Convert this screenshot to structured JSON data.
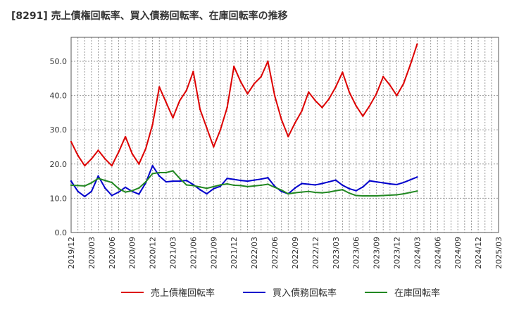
{
  "chart_data": {
    "type": "line",
    "title": "[8291]  売上債権回転率、買入債務回転率、在庫回転率の推移",
    "xlabel": "",
    "ylabel": "",
    "ylim": [
      0,
      57
    ],
    "yticks": [
      0.0,
      10.0,
      20.0,
      30.0,
      40.0,
      50.0
    ],
    "ytick_labels": [
      "0.0",
      "10.0",
      "20.0",
      "30.0",
      "40.0",
      "50.0"
    ],
    "xtick_labels": [
      "2019/12",
      "2020/03",
      "2020/06",
      "2020/09",
      "2020/12",
      "2021/03",
      "2021/06",
      "2021/09",
      "2021/12",
      "2022/03",
      "2022/06",
      "2022/09",
      "2022/12",
      "2023/03",
      "2023/06",
      "2023/09",
      "2023/12",
      "2024/03",
      "2024/06",
      "2024/09",
      "2024/12",
      "2025/03"
    ],
    "x_months_start": "2019/12",
    "x_months_end": "2025/03",
    "grid": true,
    "legend_position": "bottom",
    "series": [
      {
        "name": "売上債権回転率",
        "color": "#dd0000",
        "values": [
          26.5,
          22.5,
          19.5,
          21.5,
          24.0,
          21.5,
          19.5,
          23.5,
          28.0,
          23.0,
          20.0,
          24.5,
          31.5,
          42.5,
          38.0,
          33.5,
          38.5,
          41.5,
          47.0,
          36.0,
          30.5,
          25.0,
          30.0,
          36.5,
          48.5,
          44.0,
          40.5,
          43.5,
          45.5,
          50.0,
          40.0,
          33.0,
          28.0,
          32.0,
          35.5,
          41.0,
          38.5,
          36.5,
          39.0,
          42.5,
          46.8,
          41.0,
          37.0,
          34.0,
          37.0,
          40.5,
          45.5,
          43.0,
          40.0,
          43.5,
          49.0,
          55.0
        ]
      },
      {
        "name": "買入債務回転率",
        "color": "#0000cc",
        "values": [
          15.0,
          12.0,
          10.5,
          12.0,
          16.5,
          13.0,
          10.8,
          11.8,
          13.2,
          12.0,
          11.2,
          14.5,
          19.5,
          16.5,
          14.8,
          15.0,
          15.0,
          15.2,
          14.0,
          12.5,
          11.3,
          12.8,
          13.5,
          15.8,
          15.5,
          15.2,
          15.0,
          15.3,
          15.6,
          16.0,
          13.5,
          12.0,
          11.3,
          13.0,
          14.3,
          14.1,
          13.9,
          14.3,
          14.8,
          15.3,
          13.8,
          12.8,
          12.2,
          13.3,
          15.1,
          14.8,
          14.5,
          14.2,
          14.0,
          14.6,
          15.4,
          16.2
        ]
      },
      {
        "name": "在庫回転率",
        "color": "#228822",
        "values": [
          13.8,
          13.7,
          13.6,
          14.5,
          15.8,
          15.2,
          14.6,
          12.8,
          11.8,
          12.2,
          13.0,
          14.8,
          17.2,
          17.5,
          17.5,
          18.0,
          15.8,
          13.9,
          13.7,
          13.3,
          12.9,
          13.4,
          13.9,
          14.2,
          13.8,
          13.7,
          13.4,
          13.6,
          13.8,
          14.1,
          13.2,
          12.4,
          11.3,
          11.6,
          11.8,
          12.0,
          11.7,
          11.6,
          11.8,
          12.2,
          12.5,
          11.5,
          10.8,
          10.7,
          10.7,
          10.7,
          10.8,
          10.9,
          11.0,
          11.3,
          11.7,
          12.1
        ]
      }
    ]
  }
}
